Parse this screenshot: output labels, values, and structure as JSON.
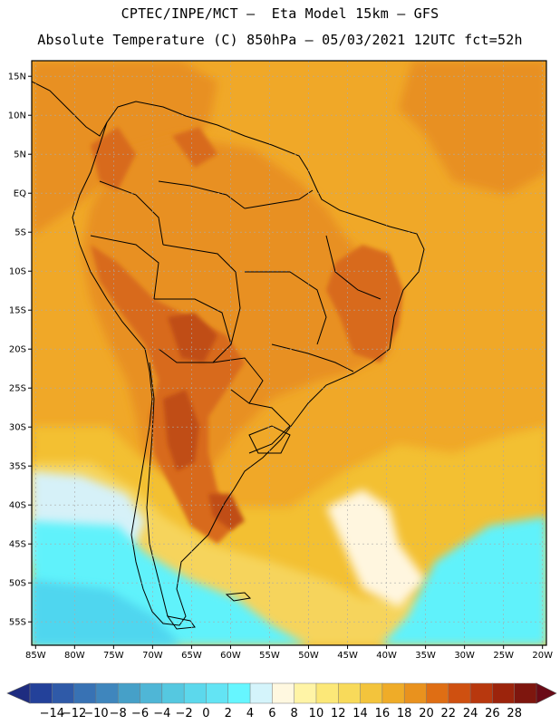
{
  "header": {
    "line1": "CPTEC/INPE/MCT –  Eta Model 15km – GFS",
    "line2": "Absolute Temperature (C) 850hPa – 05/03/2021 12UTC fct=52h"
  },
  "map": {
    "lat_labels": [
      "15N",
      "10N",
      "5N",
      "EQ",
      "5S",
      "10S",
      "15S",
      "20S",
      "25S",
      "30S",
      "35S",
      "40S",
      "45S",
      "50S",
      "55S"
    ],
    "lat_values": [
      15,
      10,
      5,
      0,
      -5,
      -10,
      -15,
      -20,
      -25,
      -30,
      -35,
      -40,
      -45,
      -50,
      -55
    ],
    "lon_labels": [
      "85W",
      "80W",
      "75W",
      "70W",
      "65W",
      "60W",
      "55W",
      "50W",
      "45W",
      "40W",
      "35W",
      "30W",
      "25W",
      "20W"
    ],
    "lon_values": [
      -85,
      -80,
      -75,
      -70,
      -65,
      -60,
      -55,
      -50,
      -45,
      -40,
      -35,
      -30,
      -25,
      -20
    ],
    "lon_range": [
      -85.5,
      -19.5
    ],
    "lat_range": [
      -58,
      17
    ],
    "grid": true,
    "colors": {
      "t16_18": "#f0a828",
      "t18_20": "#e89024",
      "t20_22": "#d86a1c",
      "t22_24": "#c04e16",
      "t14_16": "#f3c033",
      "t12_14": "#f6d45c",
      "t10_12": "#fbe68e",
      "t8_10": "#fdf2b8",
      "t6_8": "#fff6df",
      "t4_6": "#d6f1f8",
      "t2_4": "#61f2fb",
      "t0_2": "#4fd6ef",
      "coast": "#000000",
      "grid": "#aaaaaa"
    }
  },
  "colorbar": {
    "labels": [
      "-14",
      "-12",
      "-10",
      "-8",
      "-6",
      "-4",
      "-2",
      "0",
      "2",
      "4",
      "6",
      "8",
      "10",
      "12",
      "14",
      "16",
      "18",
      "20",
      "22",
      "24",
      "26",
      "28"
    ],
    "colors": [
      "#23419a",
      "#2f5aa8",
      "#3872b4",
      "#3f86bd",
      "#46a0c8",
      "#4fb6d6",
      "#55c8e0",
      "#5cd8ec",
      "#63e4f4",
      "#66f6ff",
      "#d4f4fb",
      "#fff8e0",
      "#fff4a6",
      "#fce878",
      "#f8da5a",
      "#f3c43c",
      "#efac28",
      "#e9921e",
      "#df6e14",
      "#cf5010",
      "#b8380e",
      "#9c240c",
      "#7e160e"
    ],
    "low_arrow_color": "#1e2c80",
    "high_arrow_color": "#6a0a16"
  }
}
